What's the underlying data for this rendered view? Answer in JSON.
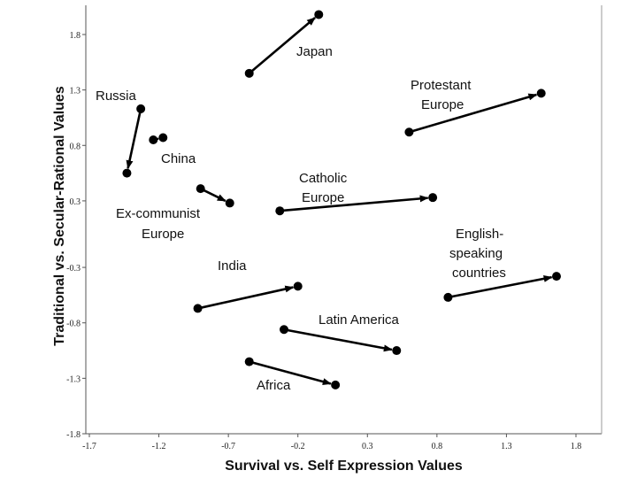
{
  "chart_data": {
    "type": "scatter",
    "title": "",
    "xlabel": "Survival vs. Self Expression Values",
    "ylabel": "Traditional vs. Secular-Rational Values",
    "xlim": [
      -1.7,
      2.0
    ],
    "ylim": [
      -1.8,
      2.0
    ],
    "x_ticks": [
      "-1.7",
      "-1.2",
      "-0.7",
      "-0.2",
      "0.3",
      "0.8",
      "1.3",
      "1.8"
    ],
    "y_ticks": [
      "1.8",
      "1.3",
      "0.8",
      "0.3",
      "-0.3",
      "-0.8",
      "-1.3",
      "-1.8"
    ],
    "grid": false,
    "legend": "none",
    "series": [
      {
        "name": "Japan",
        "from": [
          -0.55,
          1.45
        ],
        "to": [
          -0.05,
          1.98
        ]
      },
      {
        "name": "Protestant Europe",
        "from": [
          0.6,
          0.92
        ],
        "to": [
          1.55,
          1.27
        ]
      },
      {
        "name": "Russia",
        "from": [
          -1.33,
          1.13
        ],
        "to": [
          -1.43,
          0.55
        ]
      },
      {
        "name": "China",
        "from": [
          -1.24,
          0.85
        ],
        "to": [
          -1.17,
          0.87
        ]
      },
      {
        "name": "Ex-communist Europe",
        "from": [
          -0.9,
          0.41
        ],
        "to": [
          -0.69,
          0.28
        ]
      },
      {
        "name": "Catholic Europe",
        "from": [
          -0.33,
          0.21
        ],
        "to": [
          0.77,
          0.33
        ]
      },
      {
        "name": "English-speaking countries",
        "from": [
          0.88,
          -0.57
        ],
        "to": [
          1.66,
          -0.38
        ]
      },
      {
        "name": "India",
        "from": [
          -0.92,
          -0.67
        ],
        "to": [
          -0.2,
          -0.47
        ]
      },
      {
        "name": "Latin America",
        "from": [
          -0.3,
          -0.86
        ],
        "to": [
          0.51,
          -1.05
        ]
      },
      {
        "name": "Africa",
        "from": [
          -0.55,
          -1.15
        ],
        "to": [
          0.07,
          -1.36
        ]
      }
    ]
  }
}
